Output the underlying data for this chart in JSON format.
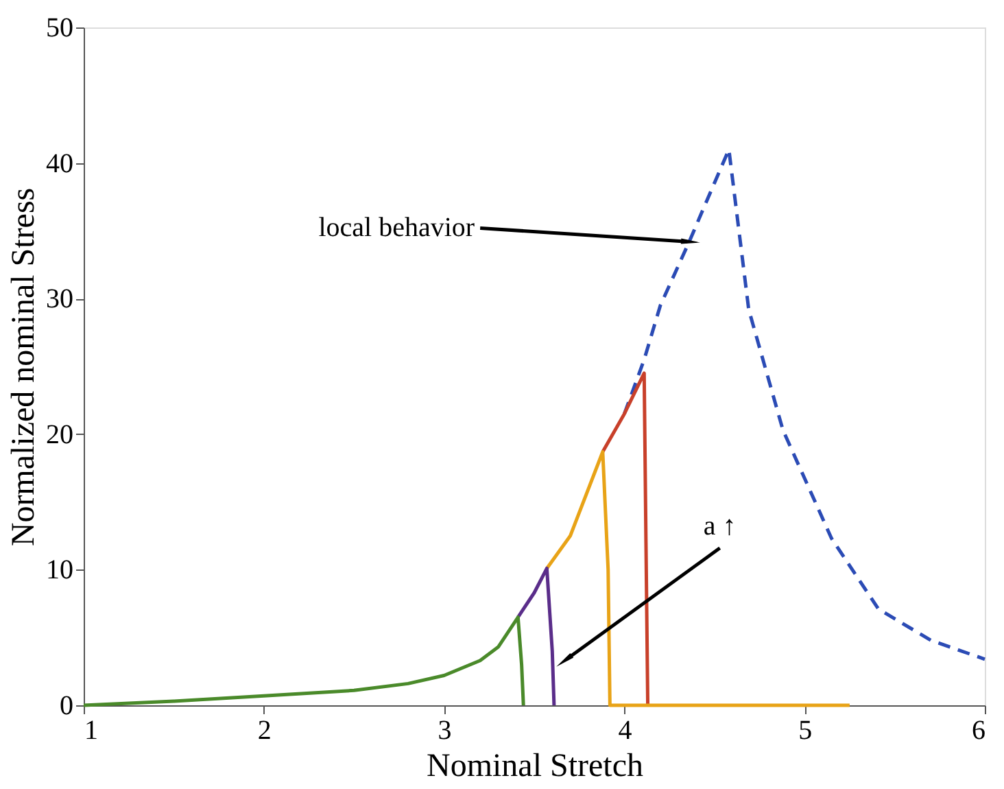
{
  "chart_data": {
    "type": "line",
    "xlabel": "Nominal Stretch",
    "ylabel": "Normalized nominal Stress",
    "xlim": [
      1,
      6
    ],
    "ylim": [
      0,
      50
    ],
    "xticks": [
      1,
      2,
      3,
      4,
      5,
      6
    ],
    "yticks": [
      0,
      10,
      20,
      30,
      40,
      50
    ],
    "grid": false,
    "marker": "none",
    "series": [
      {
        "color": "#2b4bb5",
        "line_style": "dashed",
        "x": [
          4.0,
          4.11,
          4.2,
          4.36,
          4.58,
          4.69,
          4.88,
          5.15,
          5.41,
          5.7,
          6.0
        ],
        "values": [
          21.5,
          25.5,
          29.5,
          34.2,
          41,
          29.2,
          20.3,
          12.3,
          7.1,
          4.8,
          3.4
        ]
      },
      {
        "color": "#c8402a",
        "line_style": "solid",
        "x": [
          3.88,
          4.0,
          4.11,
          4.12,
          4.13
        ],
        "values": [
          18.7,
          21.5,
          24.5,
          12,
          0
        ]
      },
      {
        "color": "#e8a317",
        "line_style": "solid",
        "x": [
          3.57,
          3.7,
          3.88,
          3.91,
          3.92,
          5.25
        ],
        "values": [
          10.1,
          12.5,
          18.7,
          10,
          0,
          0
        ]
      },
      {
        "color": "#5a2d8a",
        "line_style": "solid",
        "x": [
          3.41,
          3.5,
          3.57,
          3.6,
          3.61
        ],
        "values": [
          6.5,
          8.3,
          10.1,
          4,
          0
        ]
      },
      {
        "color": "#4a8a2a",
        "line_style": "solid",
        "x": [
          1,
          1.5,
          2,
          2.5,
          2.8,
          3.0,
          3.2,
          3.3,
          3.41,
          3.43,
          3.44
        ],
        "values": [
          0,
          0.3,
          0.7,
          1.1,
          1.6,
          2.2,
          3.3,
          4.3,
          6.5,
          3,
          0
        ]
      }
    ],
    "annotations": [
      {
        "text": "local behavior",
        "x": 4.35,
        "y": 34.2
      },
      {
        "text": "a ↑",
        "x": 3.68,
        "y": 3.4
      }
    ]
  }
}
